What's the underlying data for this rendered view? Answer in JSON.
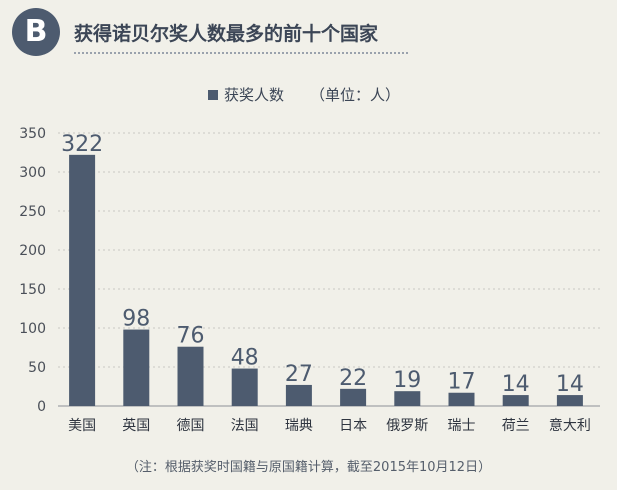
{
  "header": {
    "badge": "B",
    "title": "获得诺贝尔奖人数最多的前十个国家"
  },
  "legend": {
    "series_name": "获奖人数",
    "unit": "（单位：人）"
  },
  "footnote": "（注：根据获奖时国籍与原国籍计算，截至2015年10月12日）",
  "colors": {
    "bar": "#4d5b6f",
    "background": "#f1f0e9",
    "grid": "#c9c9c3"
  },
  "chart_data": {
    "type": "bar",
    "title": "获得诺贝尔奖人数最多的前十个国家",
    "xlabel": "",
    "ylabel": "",
    "categories": [
      "美国",
      "英国",
      "德国",
      "法国",
      "瑞典",
      "日本",
      "俄罗斯",
      "瑞士",
      "荷兰",
      "意大利"
    ],
    "series": [
      {
        "name": "获奖人数",
        "values": [
          322,
          98,
          76,
          48,
          27,
          22,
          19,
          17,
          14,
          14
        ]
      }
    ],
    "ylim": [
      0,
      350
    ],
    "yticks": [
      0,
      50,
      100,
      150,
      200,
      250,
      300,
      350
    ],
    "grid": true,
    "legend_position": "top-center"
  }
}
